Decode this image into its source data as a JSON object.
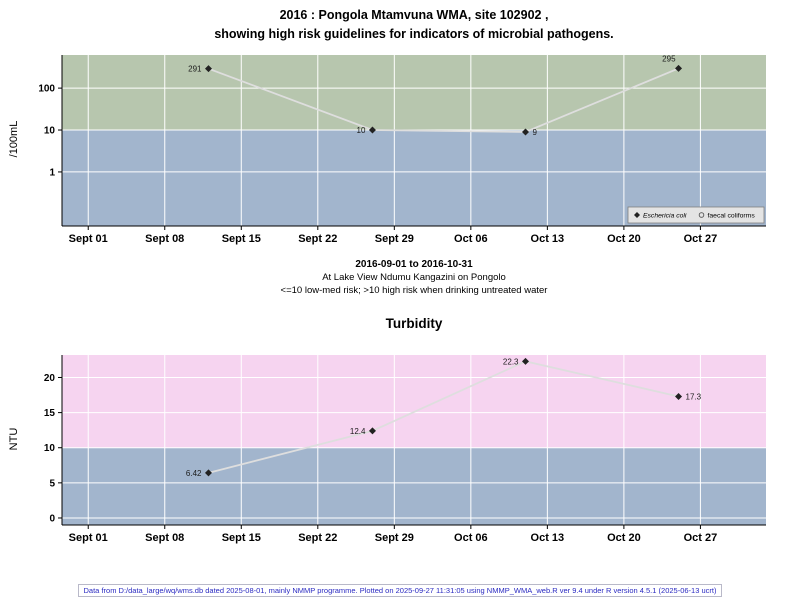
{
  "page": {
    "background": "#ffffff"
  },
  "footer": {
    "text": "Data from D:/data_large/wq/wms.db dated 2025-08-01, mainly NMMP programme. Plotted on 2025-09-27 11:31:05 using NMMP_WMA_web.R ver 9.4 under R version 4.5.1 (2025-06-13 ucrt)",
    "color": "#2a2ac2"
  },
  "chart_data": [
    {
      "type": "line",
      "title_lines": [
        "2016 : Pongola Mtamvuna WMA, site 102902 ,",
        "showing high risk guidelines for indicators of microbial pathogens."
      ],
      "ylabel": "/100mL",
      "yscale": "log",
      "y_ticks": [
        1,
        10,
        100
      ],
      "y_domain_log10": [
        -1.29,
        2.79
      ],
      "threshold": 10,
      "x_domain_days": [
        -2.4,
        62
      ],
      "x_ticks": [
        {
          "day": 0,
          "label": "Sept 01"
        },
        {
          "day": 7,
          "label": "Sept 08"
        },
        {
          "day": 14,
          "label": "Sept 15"
        },
        {
          "day": 21,
          "label": "Sept 22"
        },
        {
          "day": 28,
          "label": "Sept 29"
        },
        {
          "day": 35,
          "label": "Oct 06"
        },
        {
          "day": 42,
          "label": "Oct 13"
        },
        {
          "day": 49,
          "label": "Oct 20"
        },
        {
          "day": 56,
          "label": "Oct 27"
        }
      ],
      "series": [
        {
          "name": "Eschericia coli",
          "marker": "diamond",
          "points": [
            {
              "day": 11,
              "value": 291,
              "label": "291",
              "label_side": "left"
            },
            {
              "day": 26,
              "value": 10,
              "label": "10",
              "label_side": "left"
            },
            {
              "day": 40,
              "value": 9,
              "label": "9",
              "label_side": "right"
            },
            {
              "day": 54,
              "value": 295,
              "label": "295",
              "label_side": "above"
            }
          ]
        },
        {
          "name": "faecal coliforms",
          "marker": "circle",
          "points": []
        }
      ],
      "legend": [
        {
          "marker": "diamond",
          "label": "Eschericia coli",
          "italic": true
        },
        {
          "marker": "circle",
          "label": "faecal coliforms",
          "italic": false
        }
      ],
      "colors": {
        "high_risk_band": "#b7c6ae",
        "low_risk_band": "#a2b5cd",
        "line": "#dedede",
        "marker": "#222222",
        "grid": "#ffffff"
      },
      "captions": [
        "2016-09-01 to 2016-10-31",
        "At Lake View Ndumu Kangazini on Pongolo",
        "<=10 low-med risk; >10 high risk when drinking untreated water"
      ]
    },
    {
      "type": "line",
      "title": "Turbidity",
      "ylabel": "NTU",
      "yscale": "linear",
      "y_ticks": [
        0,
        5,
        10,
        15,
        20
      ],
      "y_domain": [
        -1.0,
        23.2
      ],
      "threshold": 10,
      "x_domain_days": [
        -2.4,
        62
      ],
      "x_ticks": [
        {
          "day": 0,
          "label": "Sept 01"
        },
        {
          "day": 7,
          "label": "Sept 08"
        },
        {
          "day": 14,
          "label": "Sept 15"
        },
        {
          "day": 21,
          "label": "Sept 22"
        },
        {
          "day": 28,
          "label": "Sept 29"
        },
        {
          "day": 35,
          "label": "Oct 06"
        },
        {
          "day": 42,
          "label": "Oct 13"
        },
        {
          "day": 49,
          "label": "Oct 20"
        },
        {
          "day": 56,
          "label": "Oct 27"
        }
      ],
      "series": [
        {
          "name": "Turbidity",
          "marker": "diamond",
          "points": [
            {
              "day": 11,
              "value": 6.42,
              "label": "6.42",
              "label_side": "left"
            },
            {
              "day": 26,
              "value": 12.4,
              "label": "12.4",
              "label_side": "left"
            },
            {
              "day": 40,
              "value": 22.3,
              "label": "22.3",
              "label_side": "left"
            },
            {
              "day": 54,
              "value": 17.3,
              "label": "17.3",
              "label_side": "right"
            }
          ]
        }
      ],
      "colors": {
        "high_risk_band": "#f6d4f0",
        "low_risk_band": "#a2b5cd",
        "line": "#dedede",
        "marker": "#222222",
        "grid": "#ffffff"
      }
    }
  ]
}
